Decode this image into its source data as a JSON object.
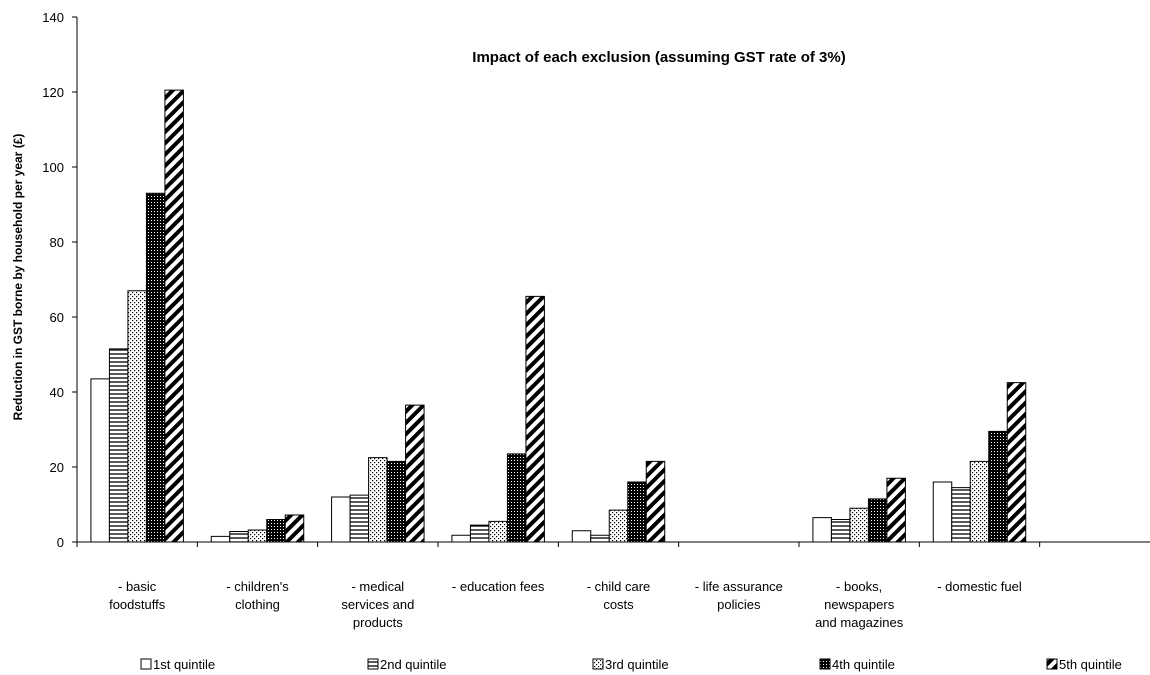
{
  "chart_data": {
    "type": "bar",
    "title": "Impact of each exclusion (assuming GST rate of 3%)",
    "xlabel": "",
    "ylabel": "Reduction in GST borne by household  per year (£)",
    "ylim": [
      0,
      140
    ],
    "yticks": [
      0,
      20,
      40,
      60,
      80,
      100,
      120,
      140
    ],
    "grid": false,
    "legend_position": "bottom",
    "categories": [
      [
        "- basic",
        "foodstuffs"
      ],
      [
        "- children's",
        "clothing"
      ],
      [
        "- medical",
        "services and",
        "products"
      ],
      [
        "- education fees"
      ],
      [
        "- child care",
        "costs"
      ],
      [
        "- life assurance",
        "policies"
      ],
      [
        "- books,",
        "newspapers",
        "and magazines"
      ],
      [
        "- domestic fuel"
      ],
      [
        ""
      ]
    ],
    "series": [
      {
        "name": "1st quintile",
        "pattern": "blank",
        "values": [
          43.5,
          1.5,
          12,
          1.8,
          3,
          0,
          6.5,
          16,
          0
        ]
      },
      {
        "name": "2nd quintile",
        "pattern": "horizontal-lines",
        "values": [
          51.5,
          2.8,
          12.5,
          4.5,
          1.8,
          0,
          6,
          14.5,
          0
        ]
      },
      {
        "name": "3rd quintile",
        "pattern": "dots",
        "values": [
          67,
          3.2,
          22.5,
          5.5,
          8.5,
          0,
          9,
          21.5,
          0
        ]
      },
      {
        "name": "4th quintile",
        "pattern": "dark-grid",
        "values": [
          93,
          6,
          21.5,
          23.5,
          16,
          0,
          11.5,
          29.5,
          0
        ]
      },
      {
        "name": "5th quintile",
        "pattern": "diagonal-stripes",
        "values": [
          120.5,
          7.2,
          36.5,
          65.5,
          21.5,
          0,
          17,
          42.5,
          0
        ]
      }
    ]
  }
}
